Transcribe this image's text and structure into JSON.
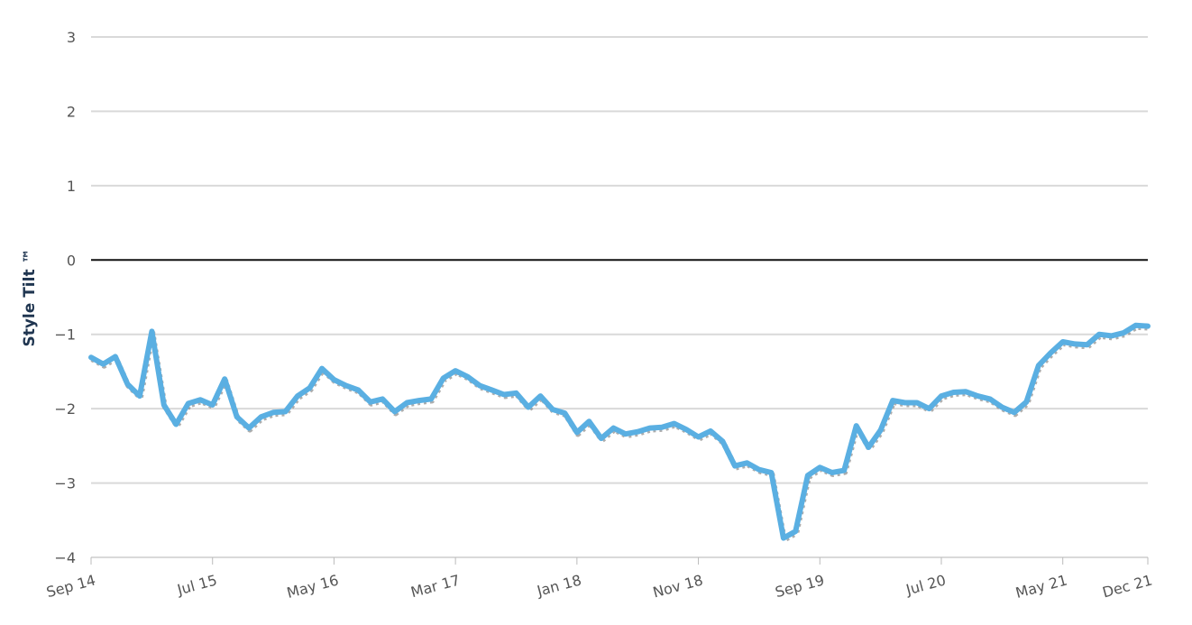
{
  "chart_data": {
    "type": "line",
    "title": "",
    "xlabel": "",
    "ylabel": "Style Tilt ™",
    "ylim": [
      -4,
      3
    ],
    "yticks": [
      3,
      2,
      1,
      0,
      -1,
      -2,
      -3,
      -4
    ],
    "yticklabels": [
      "3",
      "2",
      "1",
      "0",
      "−1",
      "−2",
      "−3",
      "−4"
    ],
    "xticks": [
      "Sep 14",
      "Jul 15",
      "May 16",
      "Mar 17",
      "Jan 18",
      "Nov 18",
      "Sep 19",
      "Jul 20",
      "May 21",
      "Dec 21"
    ],
    "grid": true,
    "zero_line": true,
    "colors": {
      "line": "#5aafe2",
      "grid": "#d9d9d9",
      "zero": "#111111"
    },
    "x": [
      "Sep 14",
      "Oct 14",
      "Nov 14",
      "Dec 14",
      "Jan 15",
      "Feb 15",
      "Mar 15",
      "Apr 15",
      "May 15",
      "Jun 15",
      "Jul 15",
      "Aug 15",
      "Sep 15",
      "Oct 15",
      "Nov 15",
      "Dec 15",
      "Jan 16",
      "Feb 16",
      "Mar 16",
      "Apr 16",
      "May 16",
      "Jun 16",
      "Jul 16",
      "Aug 16",
      "Sep 16",
      "Oct 16",
      "Nov 16",
      "Dec 16",
      "Jan 17",
      "Feb 17",
      "Mar 17",
      "Apr 17",
      "May 17",
      "Jun 17",
      "Jul 17",
      "Aug 17",
      "Sep 17",
      "Oct 17",
      "Nov 17",
      "Dec 17",
      "Jan 18",
      "Feb 18",
      "Mar 18",
      "Apr 18",
      "May 18",
      "Jun 18",
      "Jul 18",
      "Aug 18",
      "Sep 18",
      "Oct 18",
      "Nov 18",
      "Dec 18",
      "Jan 19",
      "Feb 19",
      "Mar 19",
      "Apr 19",
      "May 19",
      "Jun 19",
      "Jul 19",
      "Aug 19",
      "Sep 19",
      "Oct 19",
      "Nov 19",
      "Dec 19",
      "Jan 20",
      "Feb 20",
      "Mar 20",
      "Apr 20",
      "May 20",
      "Jun 20",
      "Jul 20",
      "Aug 20",
      "Sep 20",
      "Oct 20",
      "Nov 20",
      "Dec 20",
      "Jan 21",
      "Feb 21",
      "Mar 21",
      "Apr 21",
      "May 21",
      "Jun 21",
      "Jul 21",
      "Aug 21",
      "Sep 21",
      "Oct 21",
      "Nov 21",
      "Dec 21"
    ],
    "series": [
      {
        "values": [
          -1.31,
          -1.4,
          -1.3,
          -1.67,
          -1.83,
          -0.96,
          -1.95,
          -2.21,
          -1.93,
          -1.88,
          -1.95,
          -1.6,
          -2.11,
          -2.26,
          -2.11,
          -2.05,
          -2.04,
          -1.83,
          -1.72,
          -1.46,
          -1.61,
          -1.69,
          -1.75,
          -1.91,
          -1.87,
          -2.04,
          -1.92,
          -1.89,
          -1.87,
          -1.59,
          -1.49,
          -1.57,
          -1.69,
          -1.75,
          -1.81,
          -1.79,
          -1.98,
          -1.83,
          -2.01,
          -2.06,
          -2.32,
          -2.17,
          -2.4,
          -2.26,
          -2.34,
          -2.31,
          -2.26,
          -2.25,
          -2.2,
          -2.28,
          -2.38,
          -2.3,
          -2.44,
          -2.77,
          -2.73,
          -2.82,
          -2.86,
          -3.74,
          -3.65,
          -2.9,
          -2.79,
          -2.86,
          -2.83,
          -2.23,
          -2.52,
          -2.29,
          -1.89,
          -1.92,
          -1.92,
          -2.0,
          -1.83,
          -1.78,
          -1.77,
          -1.83,
          -1.87,
          -1.98,
          -2.05,
          -1.91,
          -1.42,
          -1.25,
          -1.1,
          -1.13,
          -1.14,
          -1.0,
          -1.02,
          -0.98,
          -0.88,
          -0.89
        ]
      }
    ]
  }
}
